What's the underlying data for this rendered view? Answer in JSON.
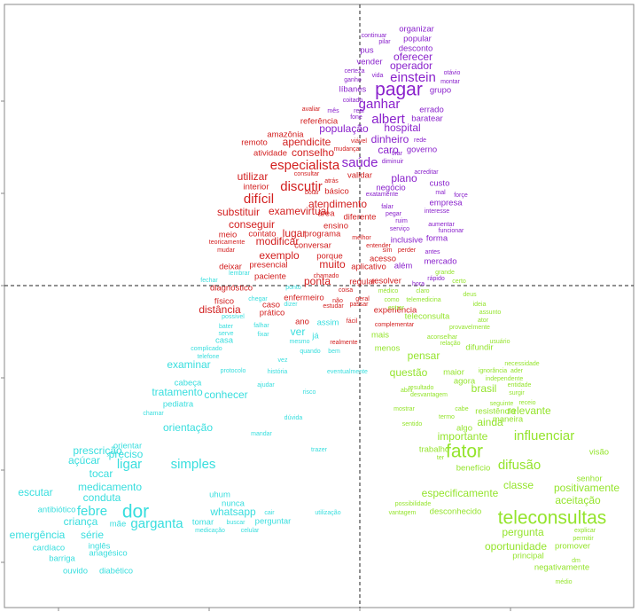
{
  "chart_data": {
    "type": "scatter",
    "xlim": [
      5,
      715
    ],
    "ylim": [
      685,
      5
    ],
    "xticks": [
      66,
      236,
      406,
      576
    ],
    "yticks": [
      114,
      218,
      322,
      426,
      530,
      634
    ],
    "origin": {
      "x": 406,
      "y": 322
    },
    "series": [
      {
        "color": "#8a22cc",
        "words": [
          "organizar",
          "continuar",
          "popular",
          "pilar",
          "pus",
          "desconto",
          "oferecer",
          "vender",
          "operador",
          "certeza",
          "vida",
          "otávio",
          "ganho",
          "einstein",
          "montar",
          "líbanes",
          "pagar",
          "grupo",
          "coitado",
          "ganhar",
          "errado",
          "real",
          "fone",
          "albert",
          "baratear",
          "hospital",
          "população",
          "dinheiro",
          "rede",
          "governo",
          "caro",
          "tirar",
          "diminuir",
          "saúde",
          "acreditar",
          "custo",
          "plano",
          "mal",
          "forçe",
          "negócio",
          "exatamente",
          "empresa",
          "falar",
          "interesse",
          "pegar",
          "ruim",
          "aumentar",
          "serviço",
          "funcionar",
          "inclusive",
          "forma",
          "antes",
          "mercado",
          "além",
          "rápido",
          "hora",
          "mês"
        ],
        "x": [
          470,
          422,
          471,
          434,
          414,
          469,
          466,
          417,
          464,
          400,
          426,
          510,
          398,
          466,
          508,
          398,
          450,
          497,
          398,
          428,
          487,
          405,
          402,
          438,
          482,
          454,
          388,
          440,
          474,
          476,
          438,
          448,
          443,
          406,
          481,
          496,
          456,
          497,
          520,
          441,
          431,
          503,
          437,
          493,
          444,
          453,
          498,
          451,
          509,
          459,
          493,
          488,
          497,
          455,
          492,
          472,
          376
        ],
        "y": [
          33,
          40,
          44,
          47,
          57,
          55,
          65,
          70,
          75,
          80,
          85,
          82,
          90,
          88,
          92,
          101,
          102,
          102,
          113,
          118,
          124,
          125,
          132,
          135,
          134,
          145,
          146,
          158,
          158,
          169,
          170,
          173,
          182,
          184,
          194,
          207,
          202,
          217,
          220,
          212,
          219,
          229,
          233,
          238,
          241,
          249,
          253,
          258,
          260,
          271,
          269,
          284,
          295,
          300,
          314,
          320,
          125
        ],
        "weights": [
          2,
          1,
          2,
          1,
          2,
          2,
          3,
          2,
          3,
          1,
          1,
          1,
          1,
          4,
          1,
          2,
          5,
          2,
          1,
          4,
          2,
          1,
          1,
          4,
          2,
          3,
          3,
          3,
          1,
          2,
          3,
          1,
          1,
          4,
          1,
          2,
          3,
          1,
          1,
          2,
          1,
          2,
          1,
          1,
          1,
          1,
          1,
          1,
          1,
          2,
          2,
          1,
          2,
          2,
          1,
          1,
          1
        ]
      },
      {
        "color": "#d21e1e",
        "words": [
          "avaliar",
          "referência",
          "amazônia",
          "remoto",
          "apendicite",
          "viável",
          "mudança",
          "atividade",
          "conselho",
          "especialista",
          "consultar",
          "atrás",
          "validar",
          "utilizar",
          "botar",
          "interior",
          "discutir",
          "básico",
          "difícil",
          "atendimento",
          "exame",
          "virtual",
          "substituir",
          "área",
          "diferente",
          "conseguir",
          "ensino",
          "lugar",
          "programa",
          "contato",
          "meio",
          "melhor",
          "teoricamente",
          "modificar",
          "conversar",
          "entender",
          "mudar",
          "sim",
          "perder",
          "exemplo",
          "porque",
          "acesso",
          "deixar",
          "presencial",
          "muito",
          "aplicativo",
          "paciente",
          "chamado",
          "resolver",
          "diagnóstico",
          "ponta",
          "regular",
          "coisa",
          "físico",
          "caso",
          "enfermeiro",
          "distância",
          "prático",
          "não",
          "estudar",
          "geral",
          "passar",
          "experiência",
          "fácil",
          "ano",
          "complementar",
          "realmente"
        ],
        "x": [
          351,
          360,
          322,
          287,
          346,
          405,
          391,
          305,
          353,
          344,
          346,
          374,
          406,
          285,
          352,
          289,
          340,
          380,
          292,
          381,
          321,
          355,
          269,
          368,
          406,
          284,
          379,
          332,
          364,
          296,
          257,
          408,
          256,
          313,
          353,
          427,
          255,
          437,
          459,
          315,
          372,
          432,
          260,
          303,
          375,
          416,
          305,
          368,
          436,
          261,
          358,
          409,
          390,
          253,
          306,
          343,
          248,
          307,
          381,
          376,
          409,
          405,
          446,
          397,
          341,
          445,
          388
        ],
        "y": [
          123,
          137,
          152,
          161,
          161,
          159,
          168,
          173,
          173,
          187,
          196,
          204,
          198,
          200,
          217,
          211,
          211,
          216,
          225,
          231,
          239,
          239,
          240,
          241,
          245,
          254,
          255,
          264,
          264,
          264,
          265,
          268,
          273,
          273,
          277,
          277,
          282,
          282,
          282,
          289,
          289,
          292,
          301,
          299,
          299,
          301,
          312,
          311,
          317,
          325,
          318,
          318,
          327,
          340,
          344,
          336,
          350,
          353,
          339,
          345,
          337,
          343,
          350,
          362,
          363,
          366,
          386
        ],
        "weights": [
          1,
          2,
          2,
          2,
          3,
          1,
          1,
          2,
          3,
          4,
          1,
          1,
          2,
          3,
          1,
          2,
          4,
          2,
          4,
          3,
          3,
          3,
          3,
          2,
          2,
          3,
          2,
          3,
          2,
          2,
          2,
          1,
          1,
          3,
          2,
          1,
          1,
          1,
          1,
          3,
          2,
          2,
          2,
          2,
          3,
          2,
          2,
          1,
          2,
          2,
          3,
          2,
          1,
          2,
          2,
          2,
          3,
          2,
          1,
          1,
          1,
          1,
          2,
          1,
          2,
          1,
          1
        ]
      },
      {
        "color": "#38dede",
        "words": [
          "fechar",
          "lembrar",
          "ponto",
          "chegar",
          "dizer",
          "possível",
          "assim",
          "bater",
          "falhar",
          "fixar",
          "ver",
          "já",
          "serve",
          "casa",
          "mesmo",
          "complicado",
          "quando",
          "bem",
          "telefone",
          "examinar",
          "vez",
          "protocolo",
          "história",
          "eventualmente",
          "cabeça",
          "tratamento",
          "ajudar",
          "risco",
          "conhecer",
          "pediatra",
          "chamar",
          "dúvida",
          "orientação",
          "mandar",
          "orientar",
          "prescrição",
          "preciso",
          "trazer",
          "açúcar",
          "ligar",
          "simples",
          "tocar",
          "escutar",
          "medicamento",
          "uhum",
          "conduta",
          "nunca",
          "febre",
          "dor",
          "antibiótico",
          "whatsapp",
          "cair",
          "utilização",
          "mãe",
          "garganta",
          "tomar",
          "buscar",
          "perguntar",
          "criança",
          "emergência",
          "série",
          "medicação",
          "celular",
          "inglês",
          "cardíaco",
          "anagésico",
          "barriga",
          "ouvido",
          "diabético"
        ],
        "x": [
          236,
          270,
          331,
          291,
          328,
          263,
          370,
          255,
          295,
          297,
          336,
          356,
          255,
          253,
          338,
          233,
          350,
          377,
          235,
          213,
          319,
          263,
          313,
          392,
          212,
          200,
          300,
          349,
          255,
          201,
          173,
          331,
          212,
          295,
          144,
          110,
          142,
          360,
          95,
          146,
          218,
          114,
          40,
          124,
          248,
          115,
          263,
          104,
          153,
          64,
          263,
          304,
          370,
          133,
          177,
          229,
          266,
          308,
          91,
          42,
          104,
          237,
          282,
          112,
          55,
          122,
          70,
          85,
          131
        ],
        "y": [
          316,
          308,
          324,
          337,
          343,
          357,
          364,
          368,
          367,
          377,
          375,
          379,
          376,
          384,
          385,
          393,
          396,
          396,
          402,
          412,
          406,
          418,
          419,
          419,
          432,
          443,
          434,
          442,
          446,
          456,
          466,
          471,
          483,
          489,
          503,
          509,
          513,
          507,
          520,
          524,
          524,
          535,
          556,
          550,
          558,
          562,
          568,
          577,
          578,
          575,
          578,
          578,
          578,
          591,
          591,
          589,
          589,
          588,
          589,
          604,
          604,
          598,
          598,
          616,
          618,
          624,
          630,
          644,
          644
        ],
        "weights": [
          1,
          1,
          1,
          1,
          1,
          1,
          2,
          1,
          1,
          1,
          3,
          2,
          1,
          2,
          1,
          1,
          1,
          1,
          1,
          3,
          1,
          1,
          1,
          1,
          2,
          3,
          1,
          1,
          3,
          2,
          1,
          1,
          3,
          1,
          2,
          3,
          3,
          1,
          3,
          4,
          4,
          3,
          3,
          3,
          2,
          3,
          2,
          4,
          5,
          2,
          3,
          1,
          1,
          2,
          4,
          2,
          1,
          2,
          3,
          3,
          3,
          1,
          1,
          2,
          2,
          2,
          2,
          2,
          2
        ]
      },
      {
        "color": "#94e42c",
        "words": [
          "certo",
          "grande",
          "médico",
          "claro",
          "telemedicina",
          "como",
          "deus",
          "ideia",
          "entrar",
          "assunto",
          "teleconsulta",
          "ator",
          "provavelmente",
          "mais",
          "aconselhar",
          "usuário",
          "relação",
          "menos",
          "difundir",
          "pensar",
          "necessidade",
          "ignorância",
          "ader",
          "maior",
          "questão",
          "independente",
          "agora",
          "entidade",
          "brasil",
          "abrir",
          "resultado",
          "desvantagem",
          "surgir",
          "seguinte",
          "receio",
          "mostrar",
          "cabe",
          "resistência",
          "relevante",
          "termo",
          "maneira",
          "ainda",
          "sentido",
          "algo",
          "influenciar",
          "importante",
          "trabalho",
          "fator",
          "visão",
          "ter",
          "benefício",
          "difusão",
          "senhor",
          "classe",
          "positivamente",
          "especificamente",
          "aceitação",
          "possibilidade",
          "desconhecido",
          "vantagem",
          "teleconsultas",
          "explicar",
          "pergunta",
          "permitir",
          "promover",
          "oportunidade",
          "principal",
          "dm",
          "negativamente",
          "médio"
        ],
        "x": [
          518,
          502,
          438,
          477,
          478,
          442,
          530,
          541,
          447,
          553,
          482,
          545,
          530,
          429,
          499,
          564,
          508,
          437,
          541,
          478,
          589,
          556,
          583,
          512,
          461,
          569,
          524,
          586,
          546,
          459,
          475,
          484,
          583,
          566,
          595,
          456,
          521,
          559,
          597,
          504,
          573,
          553,
          465,
          524,
          614,
          522,
          490,
          524,
          676,
          497,
          534,
          586,
          665,
          585,
          662,
          519,
          652,
          466,
          514,
          454,
          623,
          660,
          590,
          658,
          646,
          582,
          596,
          650,
          634,
          636
        ],
        "y": [
          317,
          307,
          328,
          328,
          338,
          338,
          332,
          343,
          347,
          352,
          357,
          361,
          369,
          378,
          380,
          385,
          387,
          393,
          392,
          402,
          410,
          418,
          418,
          420,
          421,
          427,
          430,
          434,
          439,
          440,
          437,
          445,
          443,
          455,
          454,
          461,
          461,
          464,
          464,
          470,
          473,
          477,
          478,
          483,
          492,
          493,
          507,
          510,
          510,
          516,
          528,
          525,
          540,
          548,
          551,
          557,
          565,
          568,
          577,
          578,
          585,
          598,
          601,
          607,
          616,
          617,
          627,
          632,
          640,
          656
        ],
        "weights": [
          1,
          1,
          1,
          1,
          1,
          1,
          1,
          1,
          1,
          1,
          2,
          1,
          1,
          2,
          1,
          1,
          1,
          2,
          2,
          3,
          1,
          1,
          1,
          2,
          3,
          1,
          2,
          1,
          3,
          1,
          1,
          1,
          1,
          1,
          1,
          1,
          1,
          2,
          3,
          1,
          2,
          3,
          1,
          2,
          4,
          3,
          2,
          5,
          2,
          1,
          2,
          4,
          2,
          3,
          3,
          3,
          3,
          1,
          2,
          1,
          5,
          1,
          3,
          1,
          2,
          3,
          2,
          1,
          2,
          1
        ]
      }
    ]
  }
}
